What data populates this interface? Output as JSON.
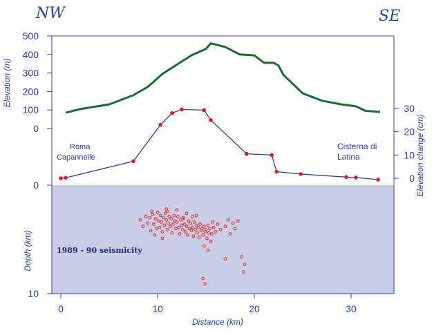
{
  "chart_data": {
    "type": "line",
    "direction_left": "NW",
    "direction_right": "SE",
    "xlabel": "Distance (km)",
    "x_ticks": [
      "0",
      "10",
      "20",
      "30"
    ],
    "elevation_axis": {
      "label": "Elevation (m)",
      "ticks": [
        "500",
        "400",
        "300",
        "200",
        "100",
        "0"
      ],
      "ylim": [
        0,
        500
      ]
    },
    "elevation_change_axis": {
      "label": "Elevation change (cm)",
      "ticks": [
        "30",
        "20",
        "10",
        "0"
      ],
      "ylim": [
        -2,
        30
      ]
    },
    "depth_axis": {
      "label": "Depth (km)",
      "ticks": [
        "0",
        "10"
      ],
      "ylim": [
        0,
        10
      ]
    },
    "series": [
      {
        "kind": "elevation",
        "color": "#1a6b2f",
        "x": [
          0.5,
          2,
          5,
          7.5,
          9,
          10.5,
          12,
          13.5,
          15,
          15.5,
          17,
          18.5,
          20,
          21,
          22,
          22.5,
          23,
          25,
          27,
          29,
          30.5,
          31.5,
          33
        ],
        "y": [
          85,
          105,
          130,
          180,
          225,
          295,
          345,
          395,
          430,
          460,
          440,
          400,
          395,
          355,
          355,
          340,
          290,
          190,
          150,
          130,
          120,
          95,
          90
        ]
      },
      {
        "kind": "elevation_change",
        "color": "#2a3fa8",
        "marker_color": "#e8171b",
        "x": [
          0,
          0.5,
          7.5,
          10.3,
          11.5,
          12.5,
          14.8,
          15.5,
          19.2,
          21.8,
          22.3,
          24.8,
          29.5,
          30.5,
          32.8
        ],
        "y": [
          0,
          0.2,
          7.3,
          23,
          28,
          29.6,
          29.3,
          25,
          10.5,
          10,
          2.8,
          1.8,
          0.5,
          0.3,
          -0.6
        ]
      }
    ],
    "seismicity": {
      "label": "1989 - 90 seismicity",
      "marker_color": "#e8171b",
      "fill_color": "#c9cde3",
      "points": [
        [
          8.2,
          3.2
        ],
        [
          8.5,
          3.8
        ],
        [
          8.8,
          2.9
        ],
        [
          9.0,
          3.5
        ],
        [
          9.2,
          3.0
        ],
        [
          9.3,
          4.2
        ],
        [
          9.5,
          2.7
        ],
        [
          9.6,
          3.6
        ],
        [
          9.8,
          3.1
        ],
        [
          9.9,
          4.0
        ],
        [
          10.0,
          2.5
        ],
        [
          10.1,
          3.3
        ],
        [
          10.2,
          3.9
        ],
        [
          10.3,
          2.8
        ],
        [
          10.4,
          3.4
        ],
        [
          10.5,
          4.3
        ],
        [
          10.6,
          3.0
        ],
        [
          10.7,
          3.7
        ],
        [
          10.8,
          2.6
        ],
        [
          10.9,
          3.2
        ],
        [
          11.0,
          4.1
        ],
        [
          11.1,
          3.5
        ],
        [
          11.2,
          2.9
        ],
        [
          11.3,
          3.8
        ],
        [
          11.4,
          3.1
        ],
        [
          11.5,
          4.4
        ],
        [
          11.6,
          3.6
        ],
        [
          11.7,
          2.8
        ],
        [
          11.8,
          3.3
        ],
        [
          11.9,
          4.0
        ],
        [
          12.0,
          3.4
        ],
        [
          12.1,
          2.9
        ],
        [
          12.2,
          3.9
        ],
        [
          12.3,
          4.5
        ],
        [
          12.4,
          3.2
        ],
        [
          12.5,
          3.7
        ],
        [
          12.6,
          4.1
        ],
        [
          12.7,
          3.0
        ],
        [
          12.8,
          3.6
        ],
        [
          12.9,
          4.3
        ],
        [
          13.0,
          3.8
        ],
        [
          13.1,
          4.6
        ],
        [
          13.2,
          3.3
        ],
        [
          13.3,
          4.0
        ],
        [
          13.4,
          3.5
        ],
        [
          13.5,
          4.2
        ],
        [
          13.6,
          3.9
        ],
        [
          13.7,
          4.7
        ],
        [
          13.8,
          3.4
        ],
        [
          13.9,
          4.1
        ],
        [
          14.0,
          3.7
        ],
        [
          14.1,
          4.4
        ],
        [
          14.2,
          3.9
        ],
        [
          14.3,
          4.8
        ],
        [
          14.4,
          3.6
        ],
        [
          14.5,
          4.2
        ],
        [
          14.6,
          4.0
        ],
        [
          14.7,
          4.6
        ],
        [
          14.8,
          3.8
        ],
        [
          14.9,
          4.3
        ],
        [
          15.0,
          4.1
        ],
        [
          15.1,
          4.9
        ],
        [
          15.2,
          3.7
        ],
        [
          15.3,
          4.4
        ],
        [
          15.4,
          4.0
        ],
        [
          15.5,
          5.2
        ],
        [
          15.6,
          4.5
        ],
        [
          15.8,
          3.9
        ],
        [
          16.0,
          4.3
        ],
        [
          16.2,
          3.6
        ],
        [
          16.5,
          4.1
        ],
        [
          17.0,
          3.8
        ],
        [
          17.3,
          3.2
        ],
        [
          17.5,
          4.5
        ],
        [
          17.8,
          3.5
        ],
        [
          18.0,
          4.0
        ],
        [
          18.3,
          3.3
        ],
        [
          10.5,
          4.9
        ],
        [
          11.0,
          2.4
        ],
        [
          12.0,
          2.3
        ],
        [
          13.0,
          2.6
        ],
        [
          14.0,
          2.8
        ],
        [
          14.8,
          5.6
        ],
        [
          15.2,
          6.0
        ],
        [
          17.0,
          6.8
        ],
        [
          18.7,
          6.6
        ],
        [
          19.0,
          7.3
        ],
        [
          18.9,
          8.0
        ],
        [
          14.7,
          8.6
        ],
        [
          14.9,
          9.1
        ],
        [
          9.4,
          2.4
        ],
        [
          9.7,
          4.6
        ],
        [
          10.9,
          2.2
        ],
        [
          12.6,
          3.1
        ],
        [
          13.6,
          2.9
        ],
        [
          15.7,
          3.4
        ]
      ]
    }
  }
}
